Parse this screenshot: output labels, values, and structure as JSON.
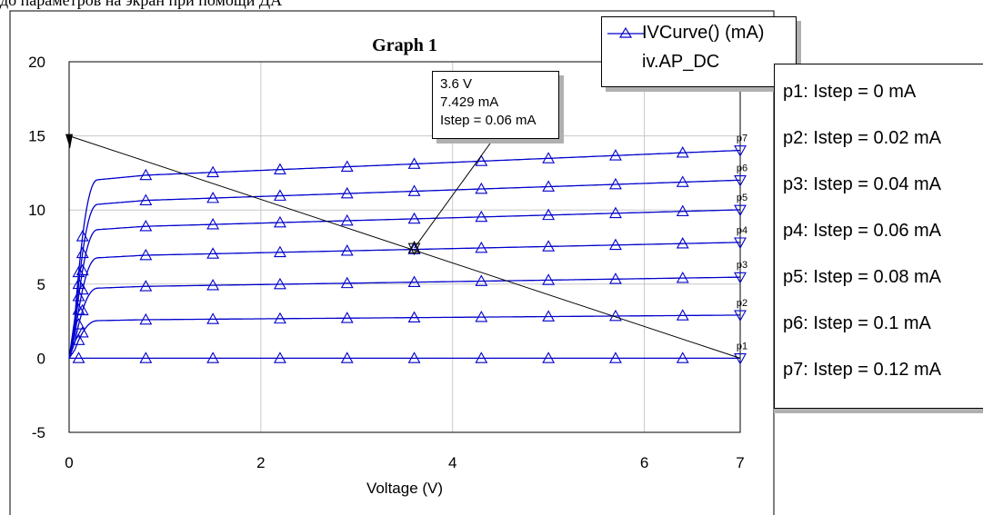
{
  "top_text": "до параметров на экран при помощи ДА",
  "chart_data": {
    "type": "line",
    "title": "Graph 1",
    "xlabel": "Voltage (V)",
    "ylabel": "",
    "xlim": [
      0,
      7
    ],
    "ylim": [
      -5,
      20
    ],
    "x_ticks": [
      "0",
      "2",
      "4",
      "6",
      "7"
    ],
    "y_ticks": [
      "-5",
      "0",
      "5",
      "10",
      "15",
      "20"
    ],
    "grid": true,
    "legend_position": "top-right",
    "legend": [
      "IVCurve() (mA)",
      "iv.AP_DC"
    ],
    "series_color": "#0000cc",
    "series": [
      {
        "name": "p1",
        "sat": 0.0,
        "slope": 0.0
      },
      {
        "name": "p2",
        "sat": 2.6,
        "slope": 0.05
      },
      {
        "name": "p3",
        "sat": 4.85,
        "slope": 0.1
      },
      {
        "name": "p4",
        "sat": 6.95,
        "slope": 0.14
      },
      {
        "name": "p5",
        "sat": 8.9,
        "slope": 0.18
      },
      {
        "name": "p6",
        "sat": 10.65,
        "slope": 0.22
      },
      {
        "name": "p7",
        "sat": 12.35,
        "slope": 0.27
      }
    ],
    "marker_x": [
      0.1,
      0.8,
      1.5,
      2.2,
      2.9,
      3.6,
      4.3,
      5.0,
      5.7,
      6.4,
      7.0
    ],
    "load_line": {
      "x": [
        0,
        7
      ],
      "y": [
        15,
        0
      ]
    },
    "operating_point": {
      "x": 3.6,
      "y": 7.429
    },
    "annotation": [
      "3.6 V",
      "7.429 mA",
      "Istep = 0.06 mA"
    ],
    "param_labels": [
      "p1: Istep = 0 mA",
      "p2: Istep = 0.02 mA",
      "p3: Istep = 0.04 mA",
      "p4: Istep = 0.06 mA",
      "p5: Istep = 0.08 mA",
      "p6: Istep = 0.1 mA",
      "p7: Istep = 0.12 mA"
    ]
  }
}
